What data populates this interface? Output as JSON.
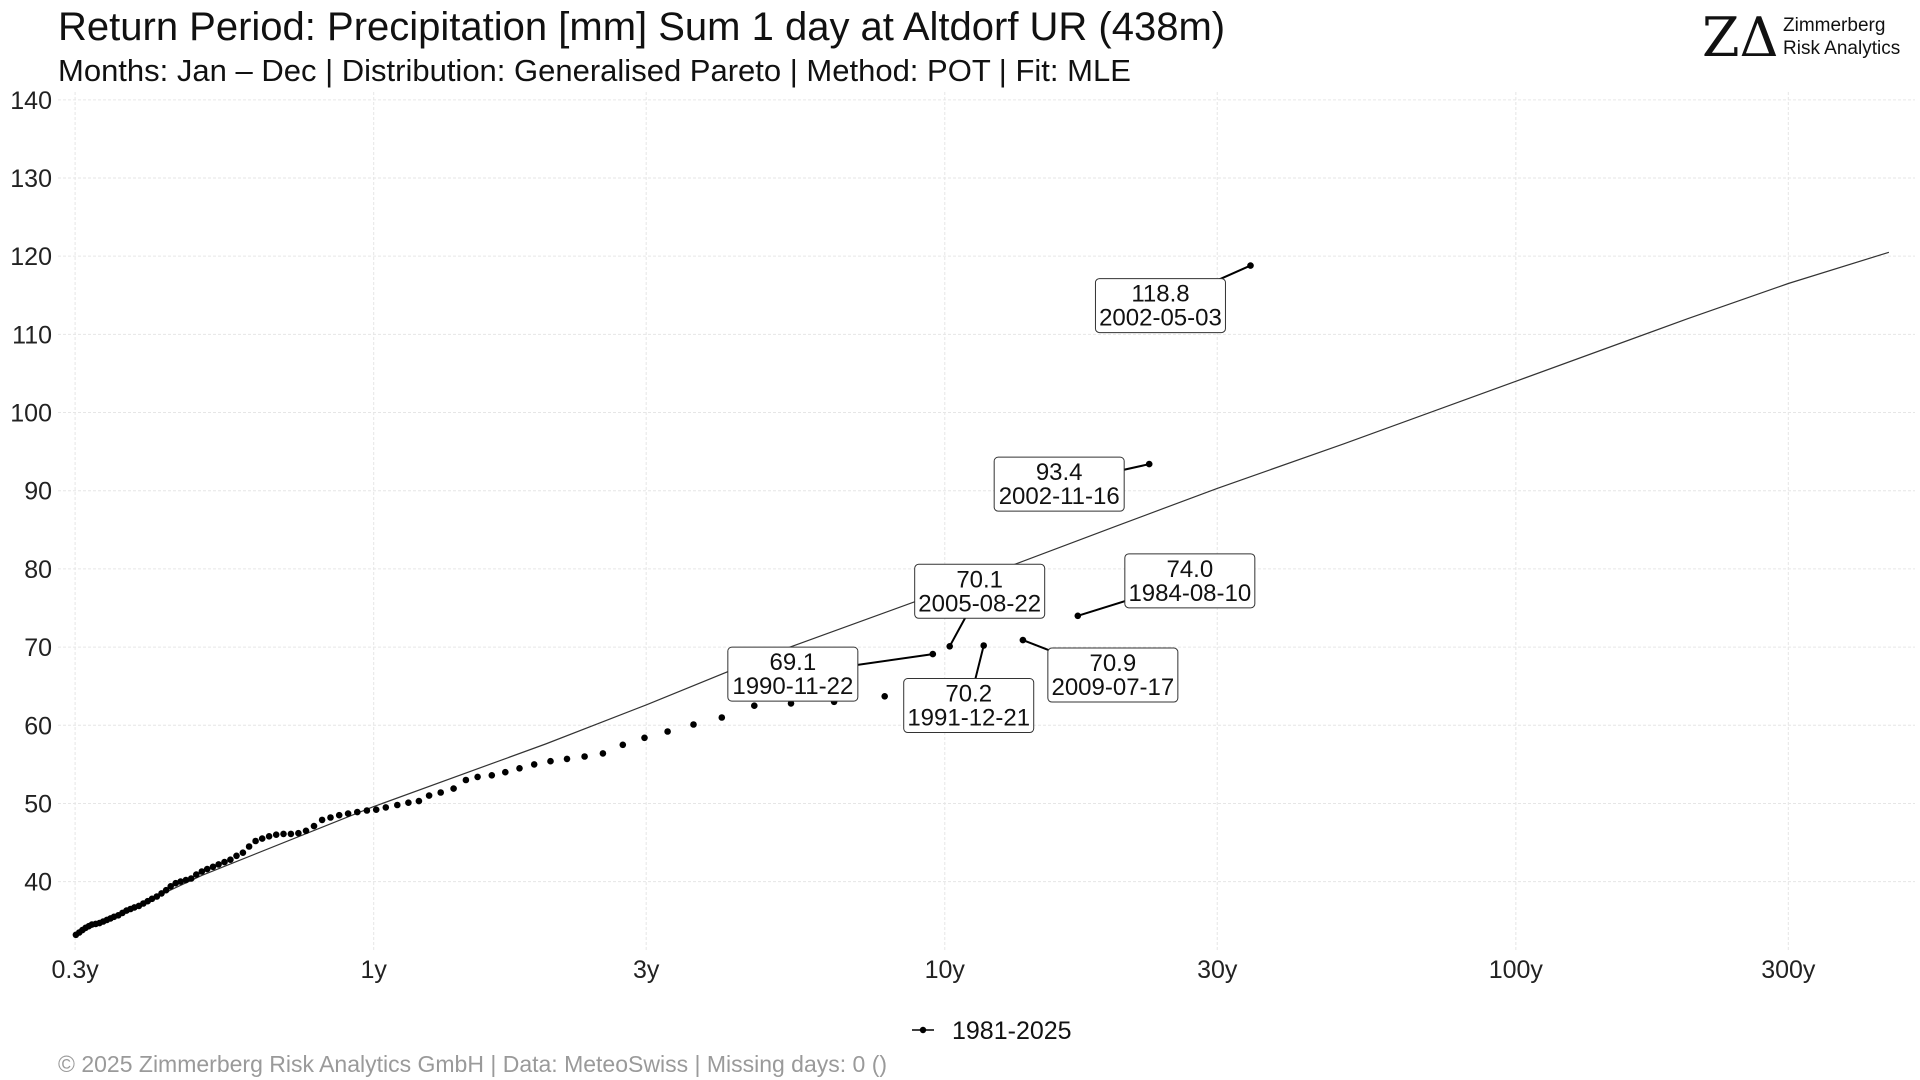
{
  "branding": {
    "logo_mark": "ZΔ",
    "logo_line1": "Zimmerberg",
    "logo_line2": "Risk Analytics",
    "accent": "#e0191e"
  },
  "footer": "© 2025 Zimmerberg Risk Analytics GmbH | Data: MeteoSwiss | Missing days: 0 ()",
  "chart_data": {
    "type": "scatter",
    "title": "Return Period: Precipitation [mm] Sum 1 day at Altdorf  UR (438m)",
    "subtitle": "Months: Jan – Dec | Distribution: Generalised Pareto | Method: POT | Fit: MLE",
    "x_scale": "log",
    "xlim": [
      0.28,
      500
    ],
    "ylim": [
      31,
      141
    ],
    "x_ticks": [
      0.3,
      1,
      3,
      10,
      30,
      100,
      300
    ],
    "x_tick_labels": [
      "0.3y",
      "1y",
      "3y",
      "10y",
      "30y",
      "100y",
      "300y"
    ],
    "y_ticks": [
      40,
      50,
      60,
      70,
      80,
      90,
      100,
      110,
      120,
      130,
      140
    ],
    "y_tick_labels": [
      "40",
      "50",
      "60",
      "70",
      "80",
      "90",
      "100",
      "110",
      "120",
      "130",
      "140"
    ],
    "grid": true,
    "legend": {
      "position": "bottom",
      "entries": [
        "1981-2025"
      ]
    },
    "fit_line": {
      "x": [
        0.3,
        0.5,
        1,
        2,
        3,
        5,
        10,
        20,
        30,
        50,
        100,
        200,
        300,
        450
      ],
      "y": [
        33.2,
        40.8,
        49.6,
        57.6,
        62.6,
        69.2,
        77.2,
        85.5,
        90.3,
        96.0,
        104.0,
        112.0,
        116.5,
        120.5
      ]
    },
    "series": [
      {
        "name": "1981-2025",
        "color": "#000000",
        "points": [
          [
            0.301,
            33.2
          ],
          [
            0.305,
            33.5
          ],
          [
            0.309,
            33.8
          ],
          [
            0.313,
            34.1
          ],
          [
            0.317,
            34.3
          ],
          [
            0.321,
            34.5
          ],
          [
            0.326,
            34.6
          ],
          [
            0.331,
            34.7
          ],
          [
            0.336,
            34.9
          ],
          [
            0.341,
            35.1
          ],
          [
            0.346,
            35.3
          ],
          [
            0.351,
            35.5
          ],
          [
            0.357,
            35.7
          ],
          [
            0.363,
            36.0
          ],
          [
            0.369,
            36.3
          ],
          [
            0.375,
            36.5
          ],
          [
            0.381,
            36.7
          ],
          [
            0.388,
            36.9
          ],
          [
            0.395,
            37.2
          ],
          [
            0.402,
            37.5
          ],
          [
            0.409,
            37.8
          ],
          [
            0.417,
            38.1
          ],
          [
            0.425,
            38.5
          ],
          [
            0.433,
            38.9
          ],
          [
            0.441,
            39.4
          ],
          [
            0.45,
            39.8
          ],
          [
            0.459,
            40.0
          ],
          [
            0.469,
            40.2
          ],
          [
            0.479,
            40.4
          ],
          [
            0.489,
            40.9
          ],
          [
            0.5,
            41.3
          ],
          [
            0.511,
            41.6
          ],
          [
            0.523,
            41.9
          ],
          [
            0.535,
            42.2
          ],
          [
            0.548,
            42.5
          ],
          [
            0.561,
            42.8
          ],
          [
            0.575,
            43.3
          ],
          [
            0.59,
            43.7
          ],
          [
            0.605,
            44.5
          ],
          [
            0.621,
            45.2
          ],
          [
            0.638,
            45.5
          ],
          [
            0.656,
            45.8
          ],
          [
            0.675,
            46.0
          ],
          [
            0.695,
            46.1
          ],
          [
            0.716,
            46.1
          ],
          [
            0.738,
            46.2
          ],
          [
            0.761,
            46.5
          ],
          [
            0.786,
            47.1
          ],
          [
            0.812,
            47.9
          ],
          [
            0.84,
            48.2
          ],
          [
            0.87,
            48.5
          ],
          [
            0.902,
            48.7
          ],
          [
            0.936,
            48.9
          ],
          [
            0.973,
            49.1
          ],
          [
            1.01,
            49.2
          ],
          [
            1.05,
            49.5
          ],
          [
            1.1,
            49.8
          ],
          [
            1.15,
            50.1
          ],
          [
            1.2,
            50.3
          ],
          [
            1.25,
            51.0
          ],
          [
            1.31,
            51.4
          ],
          [
            1.38,
            51.9
          ],
          [
            1.45,
            53.0
          ],
          [
            1.52,
            53.4
          ],
          [
            1.61,
            53.6
          ],
          [
            1.7,
            54.0
          ],
          [
            1.8,
            54.5
          ],
          [
            1.91,
            55.0
          ],
          [
            2.04,
            55.4
          ],
          [
            2.18,
            55.7
          ],
          [
            2.34,
            56.0
          ],
          [
            2.52,
            56.4
          ],
          [
            2.73,
            57.5
          ],
          [
            2.98,
            58.4
          ],
          [
            3.27,
            59.2
          ],
          [
            3.63,
            60.1
          ],
          [
            4.07,
            61.0
          ],
          [
            4.64,
            62.5
          ],
          [
            5.38,
            62.8
          ],
          [
            6.4,
            63.0
          ],
          [
            7.85,
            63.7
          ],
          [
            9.53,
            69.1
          ],
          [
            10.2,
            70.1
          ],
          [
            11.7,
            70.2
          ],
          [
            13.7,
            70.9
          ],
          [
            17.1,
            74.0
          ],
          [
            22.8,
            93.4
          ],
          [
            34.3,
            118.8
          ]
        ]
      }
    ],
    "annotations": [
      {
        "value": "118.8",
        "date": "2002-05-03",
        "x": 34.3,
        "y": 118.8
      },
      {
        "value": "93.4",
        "date": "2002-11-16",
        "x": 22.8,
        "y": 93.4
      },
      {
        "value": "74.0",
        "date": "1984-08-10",
        "x": 17.1,
        "y": 74.0
      },
      {
        "value": "70.9",
        "date": "2009-07-17",
        "x": 13.7,
        "y": 70.9
      },
      {
        "value": "70.2",
        "date": "1991-12-21",
        "x": 11.7,
        "y": 70.2
      },
      {
        "value": "70.1",
        "date": "2005-08-22",
        "x": 10.2,
        "y": 70.1
      },
      {
        "value": "69.1",
        "date": "1990-11-22",
        "x": 9.53,
        "y": 69.1
      }
    ]
  }
}
